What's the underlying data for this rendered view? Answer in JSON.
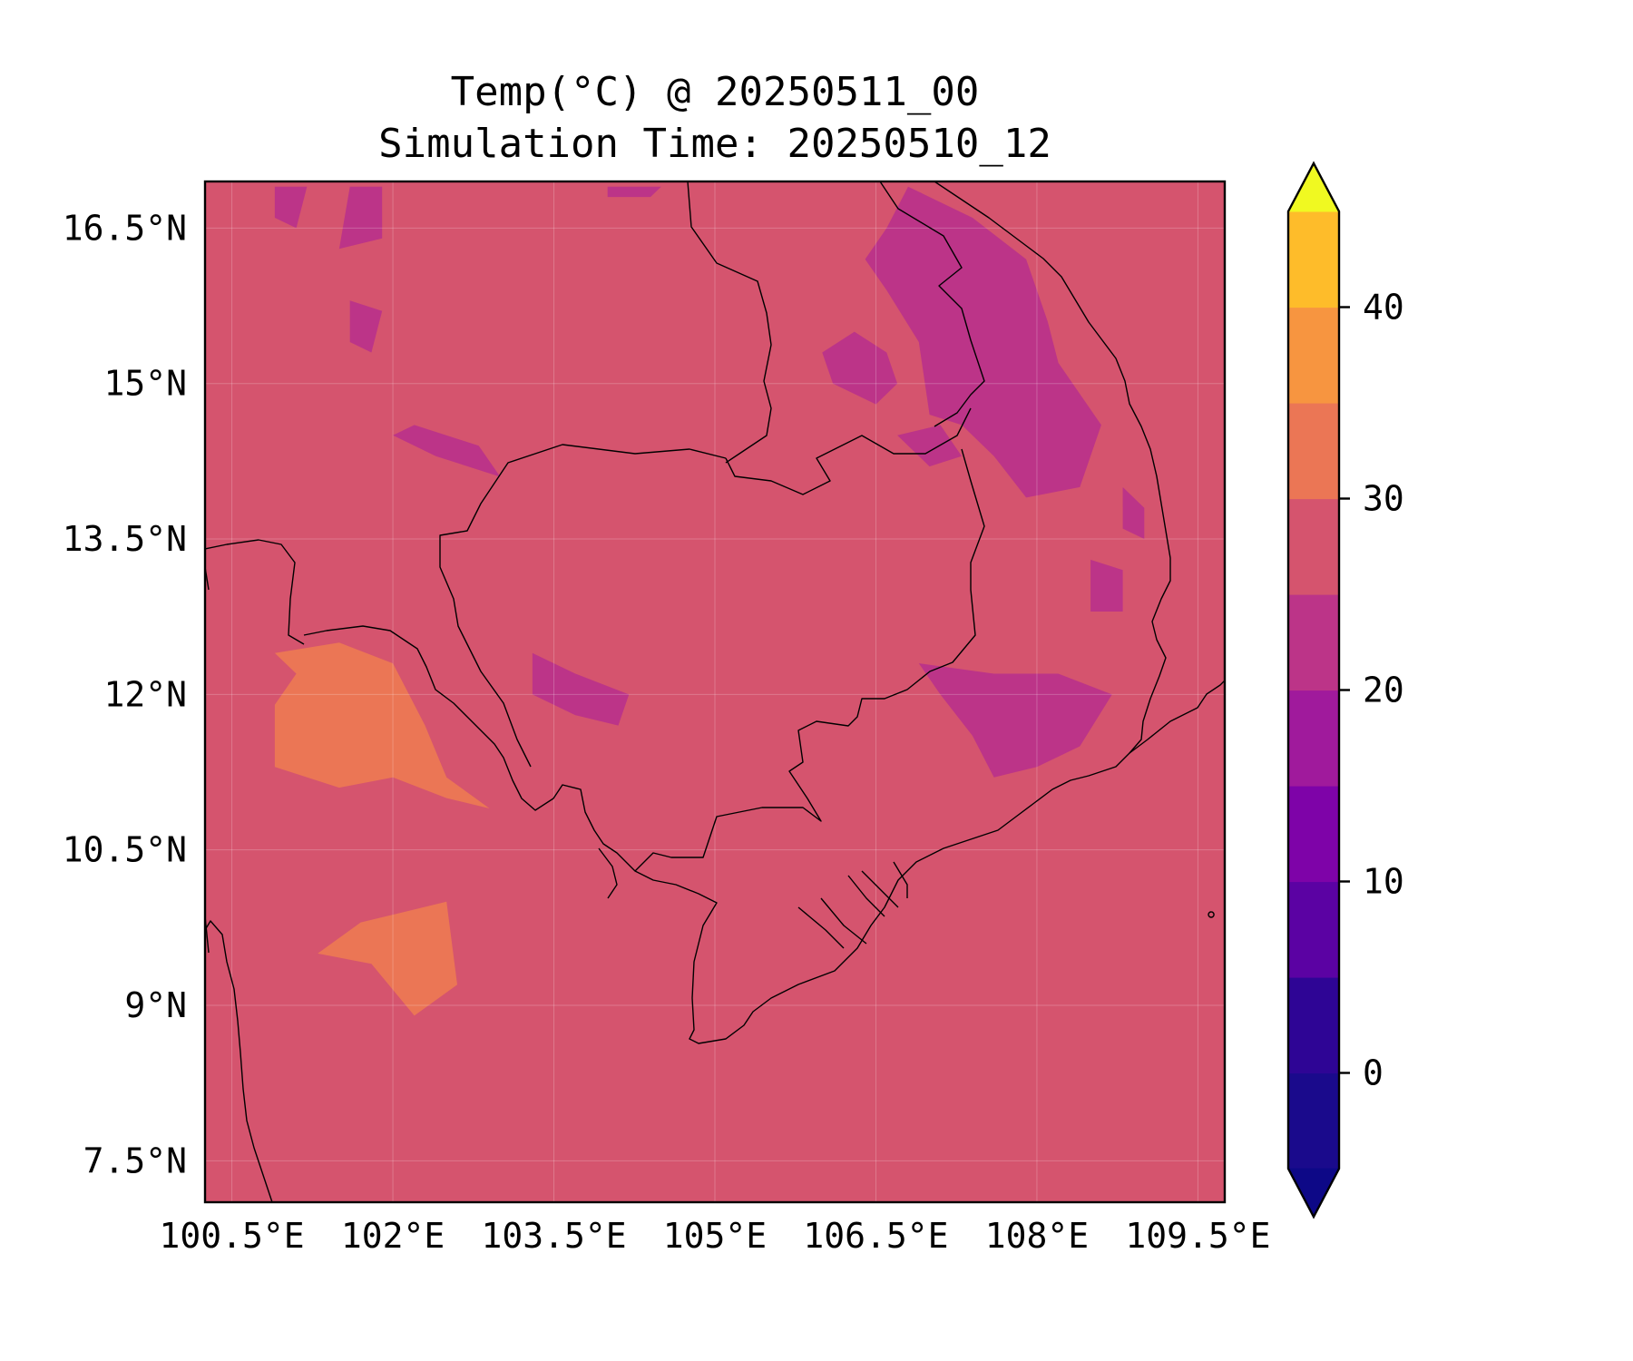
{
  "title": {
    "line1": "Temp(°C) @ 20250511_00",
    "line2": "Simulation Time: 20250510_12"
  },
  "chart_data": {
    "type": "filled-contour-map",
    "variable": "Temp(°C)",
    "valid_time": "20250511_00",
    "simulation_time": "20250510_12",
    "xlim": [
      100.25,
      109.75
    ],
    "ylim": [
      7.1,
      16.95
    ],
    "x_ticks": [
      {
        "value": 100.5,
        "label": "100.5°E"
      },
      {
        "value": 102.0,
        "label": "102°E"
      },
      {
        "value": 103.5,
        "label": "103.5°E"
      },
      {
        "value": 105.0,
        "label": "105°E"
      },
      {
        "value": 106.5,
        "label": "106.5°E"
      },
      {
        "value": 108.0,
        "label": "108°E"
      },
      {
        "value": 109.5,
        "label": "109.5°E"
      }
    ],
    "y_ticks": [
      {
        "value": 16.5,
        "label": "16.5°N"
      },
      {
        "value": 15.0,
        "label": "15°N"
      },
      {
        "value": 13.5,
        "label": "13.5°N"
      },
      {
        "value": 12.0,
        "label": "12°N"
      },
      {
        "value": 10.5,
        "label": "10.5°N"
      },
      {
        "value": 9.0,
        "label": "9°N"
      },
      {
        "value": 7.5,
        "label": "7.5°N"
      }
    ],
    "grid": true,
    "colorbar": {
      "extend": "both",
      "levels": [
        -5,
        0,
        5,
        10,
        15,
        20,
        25,
        30,
        35,
        40,
        45
      ],
      "colors": [
        "#1a0a8c",
        "#2e0595",
        "#5b02a3",
        "#7e03a8",
        "#a01a9c",
        "#bc3488",
        "#d5546e",
        "#eb7655",
        "#f79540",
        "#febc2a",
        "#f1e426"
      ],
      "under_color": "#0d0887",
      "over_color": "#f0f921",
      "tick_values": [
        0,
        10,
        20,
        30,
        40
      ],
      "tick_labels": [
        "0",
        "10",
        "20",
        "30",
        "40"
      ]
    },
    "background_band": [
      25,
      30
    ],
    "regions": [
      {
        "band": [
          20,
          25
        ],
        "points": [
          [
            106.8,
            16.9
          ],
          [
            107.4,
            16.6
          ],
          [
            107.9,
            16.2
          ],
          [
            108.1,
            15.6
          ],
          [
            108.2,
            15.2
          ],
          [
            108.6,
            14.6
          ],
          [
            108.4,
            14.0
          ],
          [
            107.9,
            13.9
          ],
          [
            107.6,
            14.3
          ],
          [
            107.3,
            14.6
          ],
          [
            107.0,
            14.7
          ],
          [
            106.9,
            15.4
          ],
          [
            106.6,
            15.9
          ],
          [
            106.4,
            16.2
          ],
          [
            106.6,
            16.5
          ]
        ]
      },
      {
        "band": [
          20,
          25
        ],
        "points": [
          [
            106.3,
            15.5
          ],
          [
            106.6,
            15.3
          ],
          [
            106.7,
            15.0
          ],
          [
            106.5,
            14.8
          ],
          [
            106.1,
            15.0
          ],
          [
            106.0,
            15.3
          ]
        ]
      },
      {
        "band": [
          20,
          25
        ],
        "points": [
          [
            106.7,
            14.5
          ],
          [
            107.1,
            14.6
          ],
          [
            107.3,
            14.3
          ],
          [
            107.0,
            14.2
          ]
        ]
      },
      {
        "band": [
          20,
          25
        ],
        "points": [
          [
            106.9,
            12.3
          ],
          [
            107.6,
            12.2
          ],
          [
            108.2,
            12.2
          ],
          [
            108.7,
            12.0
          ],
          [
            108.4,
            11.5
          ],
          [
            108.0,
            11.3
          ],
          [
            107.6,
            11.2
          ],
          [
            107.4,
            11.6
          ],
          [
            107.1,
            12.0
          ]
        ]
      },
      {
        "band": [
          20,
          25
        ],
        "points": [
          [
            108.5,
            13.3
          ],
          [
            108.8,
            13.2
          ],
          [
            108.8,
            12.8
          ],
          [
            108.5,
            12.8
          ]
        ]
      },
      {
        "band": [
          20,
          25
        ],
        "points": [
          [
            108.8,
            14.0
          ],
          [
            109.0,
            13.8
          ],
          [
            109.0,
            13.5
          ],
          [
            108.8,
            13.6
          ]
        ]
      },
      {
        "band": [
          20,
          25
        ],
        "points": [
          [
            102.0,
            14.5
          ],
          [
            102.4,
            14.3
          ],
          [
            103.0,
            14.1
          ],
          [
            102.8,
            14.4
          ],
          [
            102.2,
            14.6
          ]
        ]
      },
      {
        "band": [
          20,
          25
        ],
        "points": [
          [
            101.6,
            16.9
          ],
          [
            101.9,
            16.9
          ],
          [
            101.9,
            16.4
          ],
          [
            101.5,
            16.3
          ]
        ]
      },
      {
        "band": [
          20,
          25
        ],
        "points": [
          [
            101.6,
            15.8
          ],
          [
            101.9,
            15.7
          ],
          [
            101.8,
            15.3
          ],
          [
            101.6,
            15.4
          ]
        ]
      },
      {
        "band": [
          20,
          25
        ],
        "points": [
          [
            100.9,
            16.9
          ],
          [
            101.2,
            16.9
          ],
          [
            101.1,
            16.5
          ],
          [
            100.9,
            16.6
          ]
        ]
      },
      {
        "band": [
          20,
          25
        ],
        "points": [
          [
            104.0,
            16.9
          ],
          [
            104.5,
            16.9
          ],
          [
            104.4,
            16.8
          ],
          [
            104.0,
            16.8
          ]
        ]
      },
      {
        "band": [
          20,
          25
        ],
        "points": [
          [
            103.3,
            12.4
          ],
          [
            103.7,
            12.2
          ],
          [
            104.2,
            12.0
          ],
          [
            104.1,
            11.7
          ],
          [
            103.7,
            11.8
          ],
          [
            103.3,
            12.0
          ]
        ]
      },
      {
        "band": [
          30,
          35
        ],
        "points": [
          [
            100.9,
            12.4
          ],
          [
            101.5,
            12.5
          ],
          [
            102.0,
            12.3
          ],
          [
            102.3,
            11.7
          ],
          [
            102.5,
            11.2
          ],
          [
            102.9,
            10.9
          ],
          [
            102.5,
            11.0
          ],
          [
            102.0,
            11.2
          ],
          [
            101.5,
            11.1
          ],
          [
            100.9,
            11.3
          ],
          [
            100.9,
            11.9
          ],
          [
            101.1,
            12.2
          ]
        ]
      },
      {
        "band": [
          30,
          35
        ],
        "points": [
          [
            101.3,
            9.5
          ],
          [
            101.7,
            9.8
          ],
          [
            102.1,
            9.9
          ],
          [
            102.5,
            10.0
          ],
          [
            102.6,
            9.2
          ],
          [
            102.2,
            8.9
          ],
          [
            101.8,
            9.4
          ]
        ]
      }
    ]
  }
}
